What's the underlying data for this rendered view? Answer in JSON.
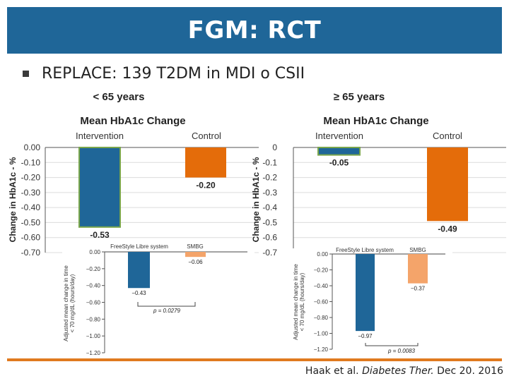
{
  "slide": {
    "title": "FGM: RCT",
    "bullet": "REPLACE: 139 T2DM in MDI o CSII",
    "citation_prefix": "Haak et al. ",
    "citation_journal": "Diabetes Ther.",
    "citation_date": " Dec 20. 2016"
  },
  "colors": {
    "title_bg": "#1f6698",
    "intervention": "#1f6698",
    "control": "#e46c0a",
    "smbg": "#f4a46a",
    "accent_line": "#e07a1f"
  },
  "chart_data": [
    {
      "type": "bar",
      "group_label": "< 65 years",
      "title": "Mean HbA1c Change",
      "categories": [
        "Intervention",
        "Control"
      ],
      "values": [
        -0.53,
        -0.2
      ],
      "value_labels": [
        "-0.53",
        "-0.20"
      ],
      "ylabel": "Change in HbA1c - %",
      "ylim": [
        -0.7,
        0.0
      ],
      "yticks": [
        "0.00",
        "-0.10",
        "-0.20",
        "-0.30",
        "-0.40",
        "-0.50",
        "-0.60",
        "-0.70"
      ]
    },
    {
      "type": "bar",
      "group_label": "≥ 65 years",
      "title": "Mean HbA1c Change",
      "categories": [
        "Intervention",
        "Control"
      ],
      "values": [
        -0.05,
        -0.49
      ],
      "value_labels": [
        "-0.05",
        "-0.49"
      ],
      "ylabel": "Change in HbA1c - %",
      "ylim": [
        -0.7,
        0
      ],
      "yticks": [
        "0",
        "-0.1",
        "-0.2",
        "-0.3",
        "-0.4",
        "-0.5",
        "-0.6",
        "-0.7"
      ]
    },
    {
      "type": "bar",
      "categories": [
        "FreeStyle Libre system",
        "SMBG"
      ],
      "values": [
        -0.43,
        -0.06
      ],
      "value_labels": [
        "−0.43",
        "−0.06"
      ],
      "ylabel_lines": [
        "Adjusted mean change in time",
        "< 70 mg/dL (hours/day)"
      ],
      "ylim": [
        -1.2,
        0.0
      ],
      "yticks": [
        "0.00",
        "−0.20",
        "−0.40",
        "−0.60",
        "−0.80",
        "−1.00",
        "−1.20"
      ],
      "annotation": "p = 0.0279"
    },
    {
      "type": "bar",
      "categories": [
        "FreeStyle Libre system",
        "SMBG"
      ],
      "values": [
        -0.97,
        -0.37
      ],
      "value_labels": [
        "−0.97",
        "−0.37"
      ],
      "ylabel_lines": [
        "Adjusted mean change in time",
        "< 70 mg/dL (hours/day)"
      ],
      "ylim": [
        -1.2,
        0.0
      ],
      "yticks": [
        "0.00",
        "−0.20",
        "−0.40",
        "−0.60",
        "−0.80",
        "−1.00",
        "−1.20"
      ],
      "annotation": "p = 0.0083"
    }
  ]
}
